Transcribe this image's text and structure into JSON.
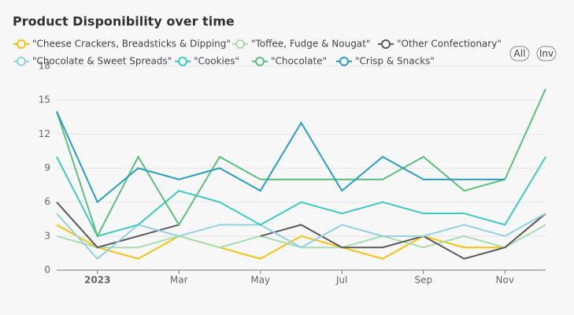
{
  "chart_data": {
    "type": "line",
    "title": "Product Disponibility over time",
    "categories": [
      null,
      "2023",
      null,
      "Mar",
      null,
      "May",
      null,
      "Jul",
      null,
      "Sep",
      null,
      "Nov",
      null
    ],
    "ylim": [
      0,
      18
    ],
    "yticks": [
      0,
      3,
      6,
      9,
      12,
      15,
      18
    ],
    "grid": true,
    "buttons": [
      "All",
      "Inv"
    ],
    "series": [
      {
        "name": "\"Cheese Crackers, Breadsticks & Dipping\"",
        "color": "#f5c211",
        "values": [
          4,
          2,
          1,
          3,
          2,
          1,
          3,
          2,
          1,
          3,
          2,
          2,
          5
        ]
      },
      {
        "name": "\"Toffee, Fudge & Nougat\"",
        "color": "#a9dcae",
        "values": [
          3,
          2,
          2,
          3,
          2,
          3,
          2,
          2,
          3,
          2,
          3,
          2,
          4
        ]
      },
      {
        "name": "\"Other Confectionary\"",
        "color": "#5a5a5a",
        "values": [
          6,
          2,
          3,
          4,
          null,
          3,
          4,
          2,
          2,
          3,
          1,
          2,
          5
        ]
      },
      {
        "name": "\"Chocolate & Sweet Spreads\"",
        "color": "#92d0e2",
        "values": [
          5,
          1,
          4,
          3,
          4,
          4,
          2,
          4,
          3,
          3,
          4,
          3,
          5
        ]
      },
      {
        "name": "\"Cookies\"",
        "color": "#3ec9c3",
        "values": [
          10,
          3,
          4,
          7,
          6,
          4,
          6,
          5,
          6,
          5,
          5,
          4,
          10
        ]
      },
      {
        "name": "\"Chocolate\"",
        "color": "#5cbf7d",
        "values": [
          14,
          3,
          10,
          4,
          10,
          8,
          8,
          8,
          8,
          10,
          7,
          8,
          16
        ]
      },
      {
        "name": "\"Crisp & Snacks\"",
        "color": "#2a9ec2",
        "values": [
          14,
          6,
          9,
          8,
          9,
          7,
          13,
          7,
          10,
          8,
          8,
          8,
          null
        ]
      }
    ]
  }
}
